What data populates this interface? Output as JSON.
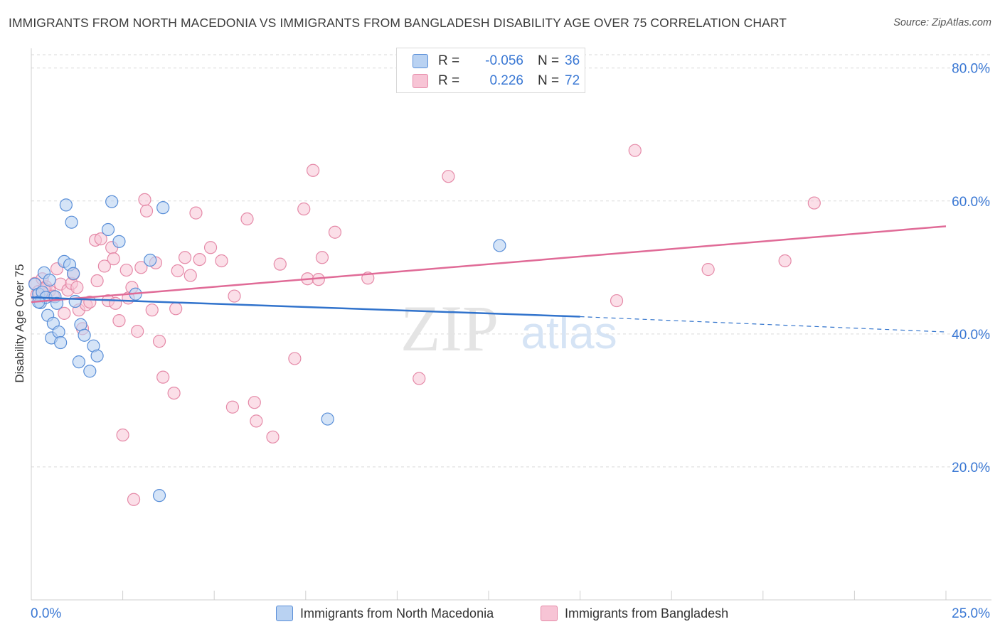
{
  "title": "IMMIGRANTS FROM NORTH MACEDONIA VS IMMIGRANTS FROM BANGLADESH DISABILITY AGE OVER 75 CORRELATION CHART",
  "source": "Source: ZipAtlas.com",
  "watermark": {
    "zip": "ZIP",
    "atlas": "atlas"
  },
  "colors": {
    "blue_fill": "#b9d2f2",
    "blue_stroke": "#5a8fd8",
    "blue_line": "#3173cc",
    "pink_fill": "#f7c4d5",
    "pink_stroke": "#e58aa8",
    "pink_line": "#e06b97",
    "axis_text": "#3a78d4",
    "grid": "#d9d9d9"
  },
  "legend": {
    "rows": [
      {
        "r_label": "R =",
        "r_value": "-0.056",
        "n_label": "N =",
        "n_value": "36"
      },
      {
        "r_label": "R =",
        "r_value": "0.226",
        "n_label": "N =",
        "n_value": "72"
      }
    ]
  },
  "bottom_legend": [
    "Immigrants from North Macedonia",
    "Immigrants from Bangladesh"
  ],
  "chart_data": {
    "type": "scatter",
    "xlabel": "",
    "ylabel": "Disability Age Over 75",
    "xlim": [
      0,
      25
    ],
    "ylim": [
      0,
      82
    ],
    "x_tick_labels": [
      "0.0%",
      "25.0%"
    ],
    "y_ticks": [
      20,
      40,
      60,
      80
    ],
    "y_tick_labels": [
      "20.0%",
      "40.0%",
      "60.0%",
      "80.0%"
    ],
    "series": [
      {
        "name": "Immigrants from North Macedonia",
        "points": [
          [
            0.1,
            47.5
          ],
          [
            0.2,
            46
          ],
          [
            0.25,
            44.7
          ],
          [
            0.3,
            46.3
          ],
          [
            0.35,
            49.2
          ],
          [
            0.4,
            45.5
          ],
          [
            0.45,
            42.8
          ],
          [
            0.5,
            48.1
          ],
          [
            0.55,
            39.4
          ],
          [
            0.6,
            41.6
          ],
          [
            0.65,
            45.6
          ],
          [
            0.7,
            44.6
          ],
          [
            0.75,
            40.3
          ],
          [
            0.8,
            38.7
          ],
          [
            0.9,
            50.9
          ],
          [
            0.95,
            59.4
          ],
          [
            1.05,
            50.4
          ],
          [
            1.1,
            56.8
          ],
          [
            1.15,
            49.1
          ],
          [
            1.2,
            44.9
          ],
          [
            1.3,
            35.8
          ],
          [
            1.35,
            41.4
          ],
          [
            1.45,
            39.8
          ],
          [
            1.6,
            34.4
          ],
          [
            1.7,
            38.2
          ],
          [
            1.8,
            36.7
          ],
          [
            2.1,
            55.7
          ],
          [
            2.2,
            59.9
          ],
          [
            2.4,
            53.9
          ],
          [
            2.85,
            46
          ],
          [
            3.25,
            51.1
          ],
          [
            3.5,
            15.7
          ],
          [
            3.6,
            59.0
          ],
          [
            8.1,
            27.2
          ],
          [
            12.8,
            53.3
          ],
          [
            0.2,
            44.8
          ]
        ],
        "trend": {
          "x0": 0,
          "y0": 45.5,
          "x1": 15,
          "y1": 42.6,
          "dash_to_x": 25,
          "dash_to_y": 40.3
        }
      },
      {
        "name": "Immigrants from Bangladesh",
        "points": [
          [
            0.1,
            47.6
          ],
          [
            0.2,
            46.4
          ],
          [
            0.3,
            48.3
          ],
          [
            0.4,
            47.1
          ],
          [
            0.5,
            46.5
          ],
          [
            0.6,
            45.7
          ],
          [
            0.7,
            49.8
          ],
          [
            0.8,
            47.5
          ],
          [
            0.9,
            43.1
          ],
          [
            1.0,
            46.6
          ],
          [
            1.1,
            47.6
          ],
          [
            1.15,
            49.0
          ],
          [
            1.3,
            43.6
          ],
          [
            1.4,
            40.8
          ],
          [
            1.5,
            44.4
          ],
          [
            1.6,
            44.8
          ],
          [
            1.75,
            54.1
          ],
          [
            1.8,
            48.0
          ],
          [
            1.9,
            54.3
          ],
          [
            2.0,
            50.2
          ],
          [
            2.1,
            45.0
          ],
          [
            2.2,
            53.0
          ],
          [
            2.3,
            44.6
          ],
          [
            2.4,
            42.0
          ],
          [
            2.5,
            24.8
          ],
          [
            2.6,
            49.6
          ],
          [
            2.65,
            45.4
          ],
          [
            2.75,
            47.0
          ],
          [
            2.9,
            40.4
          ],
          [
            3.0,
            50.0
          ],
          [
            3.1,
            60.2
          ],
          [
            3.15,
            58.5
          ],
          [
            3.3,
            43.6
          ],
          [
            3.4,
            50.7
          ],
          [
            3.5,
            38.9
          ],
          [
            3.6,
            33.5
          ],
          [
            3.9,
            31.1
          ],
          [
            3.95,
            43.8
          ],
          [
            4.0,
            49.5
          ],
          [
            4.2,
            51.5
          ],
          [
            4.35,
            48.8
          ],
          [
            4.5,
            58.2
          ],
          [
            4.6,
            51.2
          ],
          [
            4.9,
            53.0
          ],
          [
            5.2,
            51.0
          ],
          [
            5.5,
            29.0
          ],
          [
            5.55,
            45.7
          ],
          [
            5.9,
            57.3
          ],
          [
            6.1,
            29.7
          ],
          [
            6.15,
            26.9
          ],
          [
            6.6,
            24.5
          ],
          [
            6.8,
            50.5
          ],
          [
            7.2,
            36.3
          ],
          [
            7.45,
            58.8
          ],
          [
            7.55,
            48.3
          ],
          [
            7.7,
            64.6
          ],
          [
            7.85,
            48.2
          ],
          [
            7.95,
            51.5
          ],
          [
            8.3,
            55.3
          ],
          [
            9.2,
            48.4
          ],
          [
            10.6,
            33.3
          ],
          [
            11.4,
            63.7
          ],
          [
            16.0,
            45.0
          ],
          [
            16.5,
            67.6
          ],
          [
            18.5,
            49.7
          ],
          [
            20.6,
            51.0
          ],
          [
            21.4,
            59.7
          ],
          [
            2.8,
            15.1
          ],
          [
            1.25,
            47.0
          ],
          [
            0.15,
            45.9
          ],
          [
            0.35,
            46.8
          ],
          [
            2.25,
            51.3
          ]
        ],
        "trend": {
          "x0": 0,
          "y0": 44.8,
          "x1": 25,
          "y1": 56.2
        }
      }
    ]
  }
}
